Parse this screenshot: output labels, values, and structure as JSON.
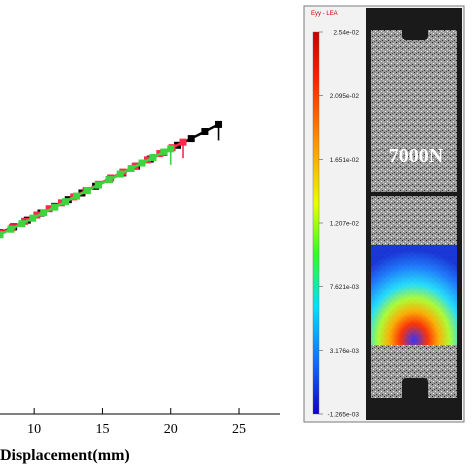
{
  "chart_data": {
    "type": "line",
    "xlabel": "Displacement(mm)",
    "x_ticks": [
      "10",
      "15",
      "20",
      "25"
    ],
    "xlim": [
      7.5,
      28
    ],
    "ylim": [
      0,
      1
    ],
    "series": [
      {
        "color": "#000000",
        "end_x": 23.5,
        "x": [
          7.5,
          8.5,
          9.5,
          10.5,
          11.5,
          12.5,
          13.5,
          14.5,
          15.5,
          16.5,
          17.5,
          18.5,
          19.5,
          20.5,
          21.5,
          22.5,
          23.5
        ],
        "y": [
          0.46,
          0.475,
          0.492,
          0.51,
          0.527,
          0.544,
          0.561,
          0.578,
          0.595,
          0.612,
          0.629,
          0.647,
          0.664,
          0.682,
          0.699,
          0.717,
          0.735
        ]
      },
      {
        "color": "#ff2a4a",
        "end_x": 20.9,
        "x": [
          7.5,
          8.4,
          9.3,
          10.2,
          11.1,
          12.0,
          12.9,
          13.8,
          14.7,
          15.6,
          16.5,
          17.4,
          18.3,
          19.2,
          20.1,
          20.9
        ],
        "y": [
          0.458,
          0.473,
          0.489,
          0.505,
          0.521,
          0.536,
          0.551,
          0.567,
          0.583,
          0.599,
          0.614,
          0.629,
          0.645,
          0.661,
          0.676,
          0.69
        ]
      },
      {
        "color": "#3fd43f",
        "end_x": 20.0,
        "x": [
          7.5,
          8.3,
          9.1,
          9.9,
          10.7,
          11.5,
          12.3,
          13.1,
          13.9,
          14.7,
          15.5,
          16.3,
          17.1,
          17.9,
          18.7,
          19.5,
          20.0
        ],
        "y": [
          0.455,
          0.469,
          0.483,
          0.497,
          0.511,
          0.525,
          0.539,
          0.553,
          0.567,
          0.581,
          0.595,
          0.609,
          0.623,
          0.637,
          0.651,
          0.665,
          0.673
        ]
      }
    ],
    "colorbar": {
      "title": "Eyy - LEA",
      "labels": [
        "2.54e-02",
        "2.095e-02",
        "1.651e-02",
        "1.207e-02",
        "7.621e-03",
        "3.176e-03",
        "-1.265e-03"
      ]
    },
    "specimen_label": "7000N"
  }
}
